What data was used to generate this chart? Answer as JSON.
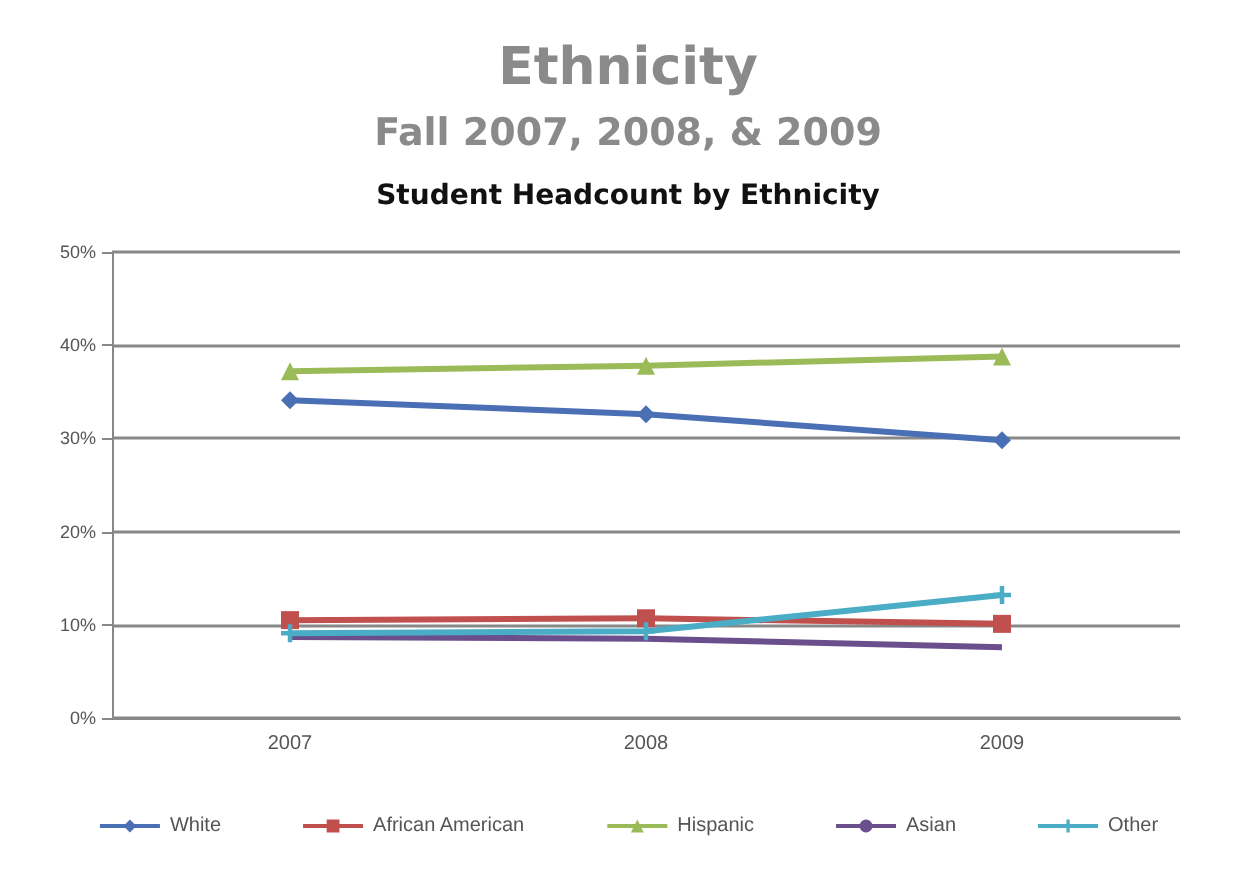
{
  "chart_data": {
    "type": "line",
    "title": "Ethnicity",
    "subtitle": "Fall 2007, 2008, & 2009",
    "annotations": [
      "Student Headcount by Ethnicity"
    ],
    "categories": [
      "2007",
      "2008",
      "2009"
    ],
    "series": [
      {
        "name": "White",
        "color": "#4a6fb5",
        "marker": "diamond",
        "values": [
          34.1,
          32.6,
          29.8
        ]
      },
      {
        "name": "African American",
        "color": "#c0504d",
        "marker": "square",
        "values": [
          10.5,
          10.7,
          10.1
        ]
      },
      {
        "name": "Hispanic",
        "color": "#9bbb59",
        "marker": "triangle",
        "values": [
          37.2,
          37.8,
          38.8
        ]
      },
      {
        "name": "Asian",
        "color": "#6a4f8c",
        "marker": "none",
        "values": [
          8.7,
          8.5,
          7.6
        ]
      },
      {
        "name": "Other",
        "color": "#4bacc6",
        "marker": "cross",
        "values": [
          9.1,
          9.3,
          13.2
        ]
      }
    ],
    "ylim": [
      0,
      50
    ],
    "yticks": [
      {
        "value": 0,
        "label": "0%"
      },
      {
        "value": 10,
        "label": "10%"
      },
      {
        "value": 20,
        "label": "20%"
      },
      {
        "value": 30,
        "label": "30%"
      },
      {
        "value": 40,
        "label": "40%"
      },
      {
        "value": 50,
        "label": "50%"
      }
    ],
    "grid": "y",
    "legend": "bottom"
  }
}
